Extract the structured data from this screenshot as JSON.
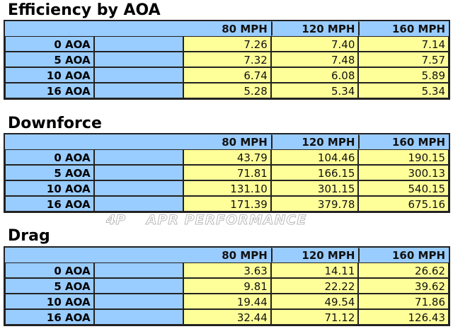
{
  "columns": [
    "80 MPH",
    "120 MPH",
    "160 MPH"
  ],
  "row_labels": [
    "0 AOA",
    "5 AOA",
    "10 AOA",
    "16 AOA"
  ],
  "tables": [
    {
      "title": "Efficiency by AOA",
      "rows": [
        [
          "7.26",
          "7.40",
          "7.14"
        ],
        [
          "7.32",
          "7.48",
          "7.57"
        ],
        [
          "6.74",
          "6.08",
          "5.89"
        ],
        [
          "5.28",
          "5.34",
          "5.34"
        ]
      ]
    },
    {
      "title": "Downforce",
      "rows": [
        [
          "43.79",
          "104.46",
          "190.15"
        ],
        [
          "71.81",
          "166.15",
          "300.13"
        ],
        [
          "131.10",
          "301.15",
          "540.15"
        ],
        [
          "171.39",
          "379.78",
          "675.16"
        ]
      ]
    },
    {
      "title": "Drag",
      "rows": [
        [
          "3.63",
          "14.11",
          "26.62"
        ],
        [
          "9.81",
          "22.22",
          "39.62"
        ],
        [
          "19.44",
          "49.54",
          "71.86"
        ],
        [
          "32.44",
          "71.12",
          "126.43"
        ]
      ]
    }
  ],
  "watermark": {
    "logo": "4P",
    "text": "APR PERFORMANCE"
  },
  "colors": {
    "header": "#99ccff",
    "value": "#ffff99",
    "border": "#222222"
  }
}
